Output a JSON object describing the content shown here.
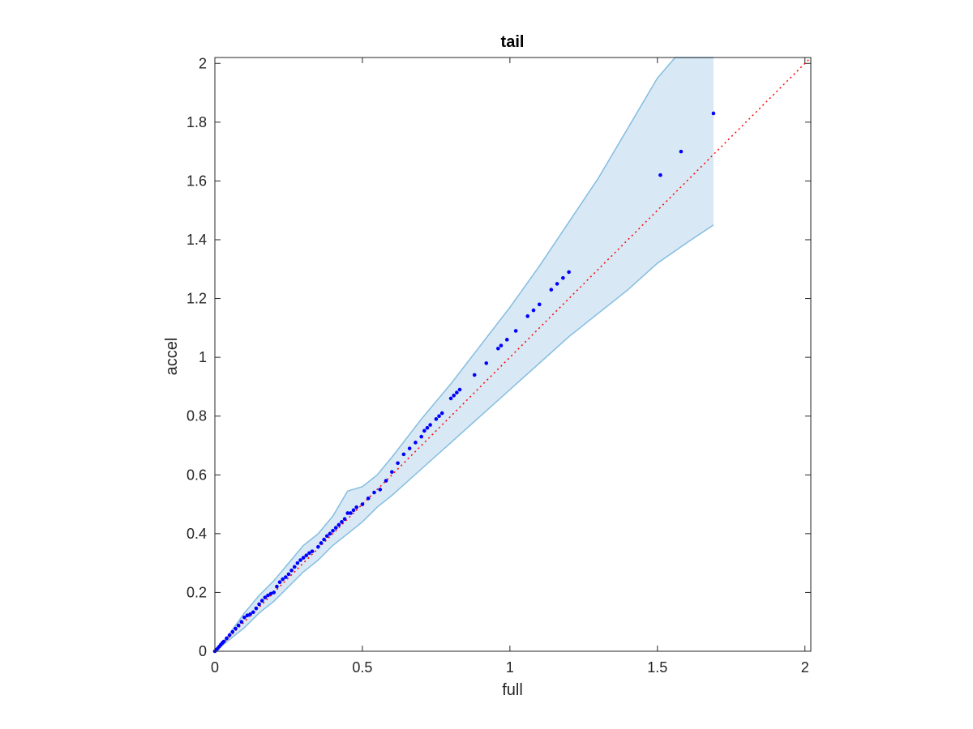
{
  "chart_data": {
    "type": "scatter",
    "title": "tail",
    "xlabel": "full",
    "ylabel": "accel",
    "xlim": [
      0,
      2.02
    ],
    "ylim": [
      0,
      2.02
    ],
    "xticks": [
      0,
      0.5,
      1,
      1.5,
      2
    ],
    "xtick_labels": [
      "0",
      "0.5",
      "1",
      "1.5",
      "2"
    ],
    "yticks": [
      0,
      0.2,
      0.4,
      0.6,
      0.8,
      1,
      1.2,
      1.4,
      1.6,
      1.8,
      2
    ],
    "ytick_labels": [
      "0",
      "0.2",
      "0.4",
      "0.6",
      "0.8",
      "1",
      "1.2",
      "1.4",
      "1.6",
      "1.8",
      "2"
    ],
    "grid": false,
    "colors": {
      "points": "#0000ff",
      "reference_line": "#ff0000",
      "band_fill": "#d8e8f4",
      "band_edge": "#84bde0",
      "axes": "#262626"
    },
    "reference_line": {
      "x": [
        0,
        2.02
      ],
      "y": [
        0,
        2.02
      ],
      "style": "dotted"
    },
    "band": {
      "upper": [
        [
          0,
          0
        ],
        [
          0.05,
          0.06
        ],
        [
          0.1,
          0.13
        ],
        [
          0.15,
          0.19
        ],
        [
          0.2,
          0.24
        ],
        [
          0.25,
          0.3
        ],
        [
          0.3,
          0.36
        ],
        [
          0.35,
          0.4
        ],
        [
          0.4,
          0.46
        ],
        [
          0.45,
          0.545
        ],
        [
          0.5,
          0.56
        ],
        [
          0.55,
          0.6
        ],
        [
          0.6,
          0.66
        ],
        [
          0.7,
          0.79
        ],
        [
          0.8,
          0.91
        ],
        [
          0.9,
          1.04
        ],
        [
          1.0,
          1.17
        ],
        [
          1.1,
          1.31
        ],
        [
          1.2,
          1.46
        ],
        [
          1.3,
          1.61
        ],
        [
          1.4,
          1.78
        ],
        [
          1.5,
          1.95
        ],
        [
          1.56,
          2.02
        ],
        [
          1.69,
          2.02
        ]
      ],
      "lower": [
        [
          1.69,
          1.45
        ],
        [
          1.6,
          1.39
        ],
        [
          1.5,
          1.32
        ],
        [
          1.4,
          1.23
        ],
        [
          1.3,
          1.15
        ],
        [
          1.2,
          1.07
        ],
        [
          1.1,
          0.98
        ],
        [
          1.0,
          0.89
        ],
        [
          0.9,
          0.8
        ],
        [
          0.8,
          0.71
        ],
        [
          0.7,
          0.62
        ],
        [
          0.6,
          0.53
        ],
        [
          0.55,
          0.49
        ],
        [
          0.5,
          0.44
        ],
        [
          0.45,
          0.4
        ],
        [
          0.4,
          0.36
        ],
        [
          0.35,
          0.31
        ],
        [
          0.3,
          0.27
        ],
        [
          0.25,
          0.22
        ],
        [
          0.2,
          0.17
        ],
        [
          0.15,
          0.13
        ],
        [
          0.1,
          0.08
        ],
        [
          0.05,
          0.04
        ],
        [
          0,
          0
        ]
      ]
    },
    "points": {
      "x": [
        0,
        0.005,
        0.01,
        0.015,
        0.02,
        0.025,
        0.03,
        0.04,
        0.05,
        0.06,
        0.07,
        0.08,
        0.09,
        0.1,
        0.11,
        0.12,
        0.13,
        0.14,
        0.15,
        0.16,
        0.17,
        0.18,
        0.19,
        0.2,
        0.21,
        0.22,
        0.23,
        0.24,
        0.25,
        0.26,
        0.27,
        0.28,
        0.29,
        0.3,
        0.31,
        0.32,
        0.33,
        0.35,
        0.36,
        0.37,
        0.38,
        0.39,
        0.4,
        0.41,
        0.42,
        0.43,
        0.44,
        0.45,
        0.46,
        0.47,
        0.48,
        0.5,
        0.52,
        0.54,
        0.56,
        0.58,
        0.6,
        0.62,
        0.64,
        0.66,
        0.68,
        0.7,
        0.71,
        0.72,
        0.73,
        0.75,
        0.76,
        0.77,
        0.8,
        0.81,
        0.82,
        0.83,
        0.88,
        0.92,
        0.96,
        0.97,
        0.99,
        1.02,
        1.06,
        1.08,
        1.1,
        1.14,
        1.16,
        1.18,
        1.2,
        1.51,
        1.58,
        1.69
      ],
      "y": [
        0,
        0.005,
        0.01,
        0.016,
        0.022,
        0.028,
        0.033,
        0.044,
        0.055,
        0.066,
        0.077,
        0.088,
        0.1,
        0.115,
        0.122,
        0.126,
        0.133,
        0.146,
        0.16,
        0.172,
        0.183,
        0.19,
        0.196,
        0.2,
        0.22,
        0.235,
        0.245,
        0.252,
        0.262,
        0.275,
        0.287,
        0.3,
        0.31,
        0.318,
        0.326,
        0.334,
        0.34,
        0.355,
        0.368,
        0.38,
        0.392,
        0.4,
        0.41,
        0.42,
        0.43,
        0.44,
        0.45,
        0.47,
        0.47,
        0.48,
        0.49,
        0.5,
        0.52,
        0.54,
        0.55,
        0.58,
        0.61,
        0.64,
        0.67,
        0.69,
        0.71,
        0.73,
        0.75,
        0.76,
        0.77,
        0.79,
        0.8,
        0.81,
        0.86,
        0.87,
        0.88,
        0.89,
        0.94,
        0.98,
        1.03,
        1.04,
        1.06,
        1.09,
        1.14,
        1.16,
        1.18,
        1.23,
        1.25,
        1.27,
        1.29,
        1.62,
        1.7,
        1.83
      ]
    }
  }
}
